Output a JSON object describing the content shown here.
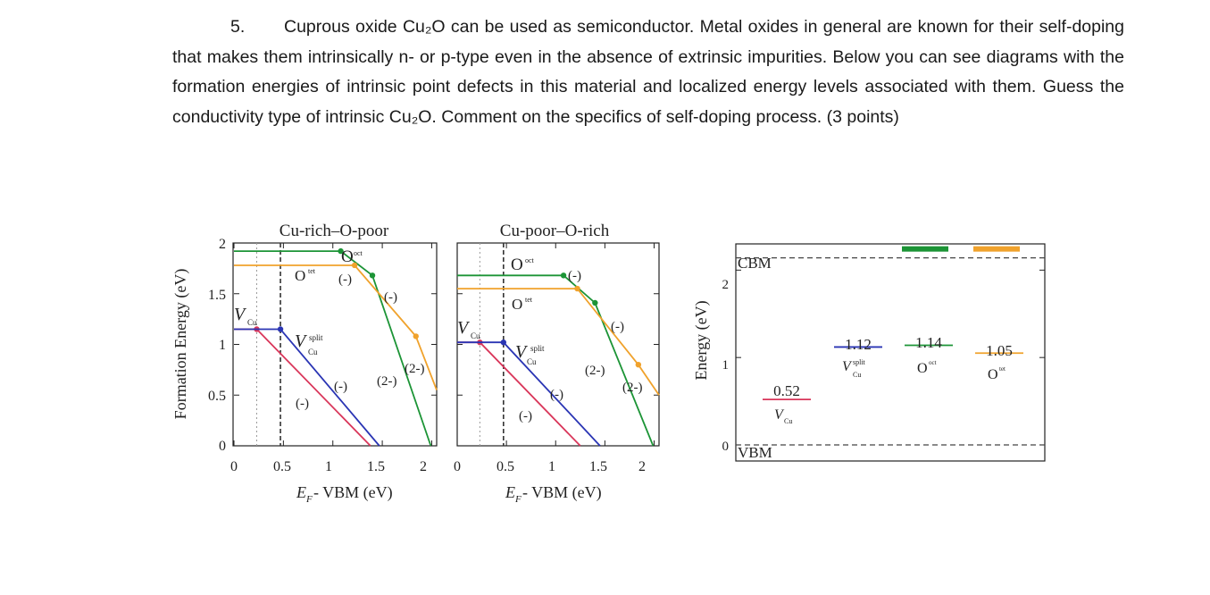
{
  "question": {
    "number": "5.",
    "text": "Cuprous oxide Cu₂O can be used as semiconductor. Metal oxides in general are known for their self-doping that makes them intrinsically n- or p-type even in the absence of extrinsic impurities. Below you can see diagrams with the formation energies of intrinsic point defects in this material and localized energy levels associated with them. Guess the conductivity type of intrinsic Cu₂O. Comment on the specifics of self-doping process. (3 points)"
  },
  "colors": {
    "v_cu": "#d9365a",
    "v_cu_split": "#2a35b4",
    "o_i_oct": "#1c9436",
    "o_i_tet": "#f0a22c",
    "axis": "#222222",
    "dash": "#444444"
  },
  "chart_data": [
    {
      "type": "line",
      "title": "Cu-rich–O-poor",
      "ylabel": "Formation Energy (eV)",
      "xlabel": "E_F - VBM (eV)",
      "xlim": [
        0,
        2.05
      ],
      "ylim": [
        0,
        2
      ],
      "xticks": [
        "0",
        "0.5",
        "1",
        "1.5",
        "2"
      ],
      "yticks": [
        "0",
        "0.5",
        "1",
        "1.5",
        "2"
      ],
      "series": [
        {
          "name": "V_Cu",
          "color": "#d9365a",
          "points": [
            [
              0,
              1.15
            ],
            [
              0.23,
              1.15
            ],
            [
              1.38,
              0
            ]
          ],
          "markers": [
            [
              0.23,
              1.15
            ]
          ]
        },
        {
          "name": "V_Cu^split",
          "color": "#2a35b4",
          "points": [
            [
              0,
              1.15
            ],
            [
              0.47,
              1.15
            ],
            [
              1.47,
              0
            ]
          ],
          "markers": [
            [
              0.47,
              1.15
            ]
          ]
        },
        {
          "name": "O_i^oct",
          "color": "#1c9436",
          "points": [
            [
              0,
              1.92
            ],
            [
              1.08,
              1.92
            ],
            [
              1.4,
              1.68
            ],
            [
              1.99,
              0
            ]
          ],
          "markers": [
            [
              1.08,
              1.92
            ],
            [
              1.4,
              1.68
            ]
          ]
        },
        {
          "name": "O_i^tet",
          "color": "#f0a22c",
          "points": [
            [
              0,
              1.78
            ],
            [
              1.22,
              1.78
            ],
            [
              1.84,
              1.08
            ],
            [
              2.05,
              0.55
            ]
          ],
          "markers": [
            [
              1.22,
              1.78
            ],
            [
              1.84,
              1.08
            ]
          ]
        }
      ],
      "vlines": [
        0.23,
        0.47
      ],
      "labels": [
        "(-)",
        "(-)",
        "(-)",
        "(-)",
        "(2-)",
        "(2-)",
        "(-)"
      ]
    },
    {
      "type": "line",
      "title": "Cu-poor–O-rich",
      "ylabel": "",
      "xlabel": "E_F - VBM (eV)",
      "xlim": [
        0,
        2.05
      ],
      "ylim": [
        0,
        2
      ],
      "xticks": [
        "0",
        "0.5",
        "1",
        "1.5",
        "2"
      ],
      "yticks": [
        "0",
        "0.5",
        "1",
        "1.5",
        "2"
      ],
      "series": [
        {
          "name": "V_Cu",
          "color": "#d9365a",
          "points": [
            [
              0,
              1.02
            ],
            [
              0.23,
              1.02
            ],
            [
              1.25,
              0
            ]
          ],
          "markers": [
            [
              0.23,
              1.02
            ]
          ]
        },
        {
          "name": "V_Cu^split",
          "color": "#2a35b4",
          "points": [
            [
              0,
              1.02
            ],
            [
              0.47,
              1.02
            ],
            [
              1.45,
              0
            ]
          ],
          "markers": [
            [
              0.47,
              1.02
            ]
          ]
        },
        {
          "name": "O_i^oct",
          "color": "#1c9436",
          "points": [
            [
              0,
              1.68
            ],
            [
              1.08,
              1.68
            ],
            [
              1.4,
              1.41
            ],
            [
              1.99,
              0
            ]
          ],
          "markers": [
            [
              1.08,
              1.68
            ],
            [
              1.4,
              1.41
            ]
          ]
        },
        {
          "name": "O_i^tet",
          "color": "#f0a22c",
          "points": [
            [
              0,
              1.55
            ],
            [
              1.22,
              1.55
            ],
            [
              1.84,
              0.8
            ],
            [
              2.05,
              0.5
            ]
          ],
          "markers": [
            [
              1.22,
              1.55
            ],
            [
              1.84,
              0.8
            ]
          ]
        }
      ],
      "vlines": [
        0.23,
        0.47
      ],
      "labels": [
        "(-)",
        "(-)",
        "(-)",
        "(-)",
        "(2-)",
        "(2-)",
        "(-)"
      ]
    },
    {
      "type": "bar",
      "ylabel": "Energy (eV)",
      "ylim": [
        0,
        2.3
      ],
      "yticks": [
        "0",
        "1",
        "2"
      ],
      "reference_levels": [
        {
          "label": "CBM",
          "value": 2.14
        },
        {
          "label": "VBM",
          "value": 0
        }
      ],
      "levels": [
        {
          "defect": "V_Cu",
          "color": "#d9365a",
          "value": 0.52,
          "value_label": "0.52"
        },
        {
          "defect": "V_Cu^split",
          "color": "#2a35b4",
          "value": 1.12,
          "value_label": "1.12"
        },
        {
          "defect": "O_i^oct",
          "color": "#1c9436",
          "value": 1.14,
          "value_label": "1.14"
        },
        {
          "defect": "O_i^tet",
          "color": "#f0a22c",
          "value": 1.05,
          "value_label": "1.05"
        }
      ],
      "conduction_band_markers": [
        "#1c9436",
        "#f0a22c"
      ]
    }
  ]
}
